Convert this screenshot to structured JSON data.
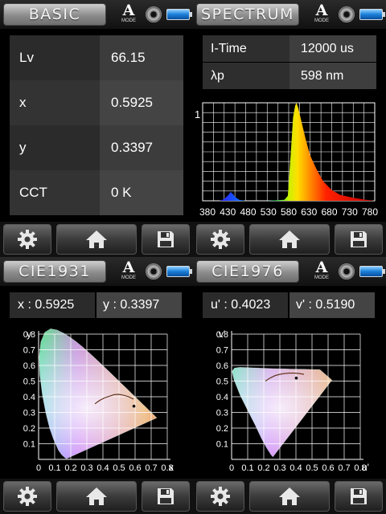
{
  "basic": {
    "title": "BASIC",
    "mode_letter": "A",
    "mode_text": "MODE",
    "rows": [
      {
        "label": "Lv",
        "value": "66.15"
      },
      {
        "label": "x",
        "value": "0.5925"
      },
      {
        "label": "y",
        "value": "0.3397"
      },
      {
        "label": "CCT",
        "value": "0 K"
      }
    ]
  },
  "spectrum": {
    "title": "SPECTRUM",
    "mode_letter": "A",
    "mode_text": "MODE",
    "rows": [
      {
        "label": "I-Time",
        "value": "12000 us"
      },
      {
        "label": "λp",
        "value": "598 nm"
      }
    ],
    "chart_data": {
      "type": "area",
      "x_ticks": [
        "380",
        "430",
        "480",
        "530",
        "580",
        "630",
        "680",
        "730",
        "780"
      ],
      "y_tick_label": "1",
      "xlim": [
        380,
        780
      ],
      "ylim": [
        0,
        1
      ],
      "grid": true,
      "x": [
        380,
        420,
        430,
        440,
        445,
        450,
        455,
        465,
        480,
        530,
        570,
        578,
        585,
        590,
        595,
        598,
        602,
        610,
        620,
        630,
        645,
        660,
        680,
        700,
        730,
        760,
        780
      ],
      "y": [
        0,
        0,
        0.02,
        0.06,
        0.09,
        0.07,
        0.04,
        0.01,
        0,
        0,
        0.01,
        0.05,
        0.5,
        0.85,
        0.97,
        1.0,
        0.95,
        0.8,
        0.62,
        0.46,
        0.32,
        0.2,
        0.11,
        0.06,
        0.03,
        0.01,
        0
      ]
    }
  },
  "cie1931": {
    "title": "CIE1931",
    "mode_letter": "A",
    "mode_text": "MODE",
    "coord_a": "x : 0.5925",
    "coord_b": "y : 0.3397",
    "chart_data": {
      "type": "scatter",
      "x_label": "x",
      "y_label": "y",
      "x_ticks": [
        "0",
        "0.1",
        "0.2",
        "0.3",
        "0.4",
        "0.5",
        "0.6",
        "0.7",
        "0.8"
      ],
      "y_ticks": [
        "0.1",
        "0.2",
        "0.3",
        "0.4",
        "0.5",
        "0.6",
        "0.7",
        "0.8"
      ],
      "xlim": [
        0,
        0.8
      ],
      "ylim": [
        0,
        0.8
      ],
      "grid": true,
      "point": {
        "x": 0.5925,
        "y": 0.3397
      }
    }
  },
  "cie1976": {
    "title": "CIE1976",
    "mode_letter": "A",
    "mode_text": "MODE",
    "coord_a": "u' : 0.4023",
    "coord_b": "v' : 0.5190",
    "chart_data": {
      "type": "scatter",
      "x_label": "u'",
      "y_label": "v'",
      "x_ticks": [
        "0",
        "0.1",
        "0.2",
        "0.3",
        "0.4",
        "0.5",
        "0.6",
        "0.7",
        "0.8"
      ],
      "y_ticks": [
        "0.1",
        "0.2",
        "0.3",
        "0.4",
        "0.5",
        "0.6",
        "0.7",
        "0.8"
      ],
      "xlim": [
        0,
        0.8
      ],
      "ylim": [
        0,
        0.8
      ],
      "grid": true,
      "point": {
        "u": 0.4023,
        "v": 0.519
      }
    }
  },
  "footer": {
    "icons": [
      "gear-icon",
      "home-icon",
      "save-icon"
    ]
  }
}
